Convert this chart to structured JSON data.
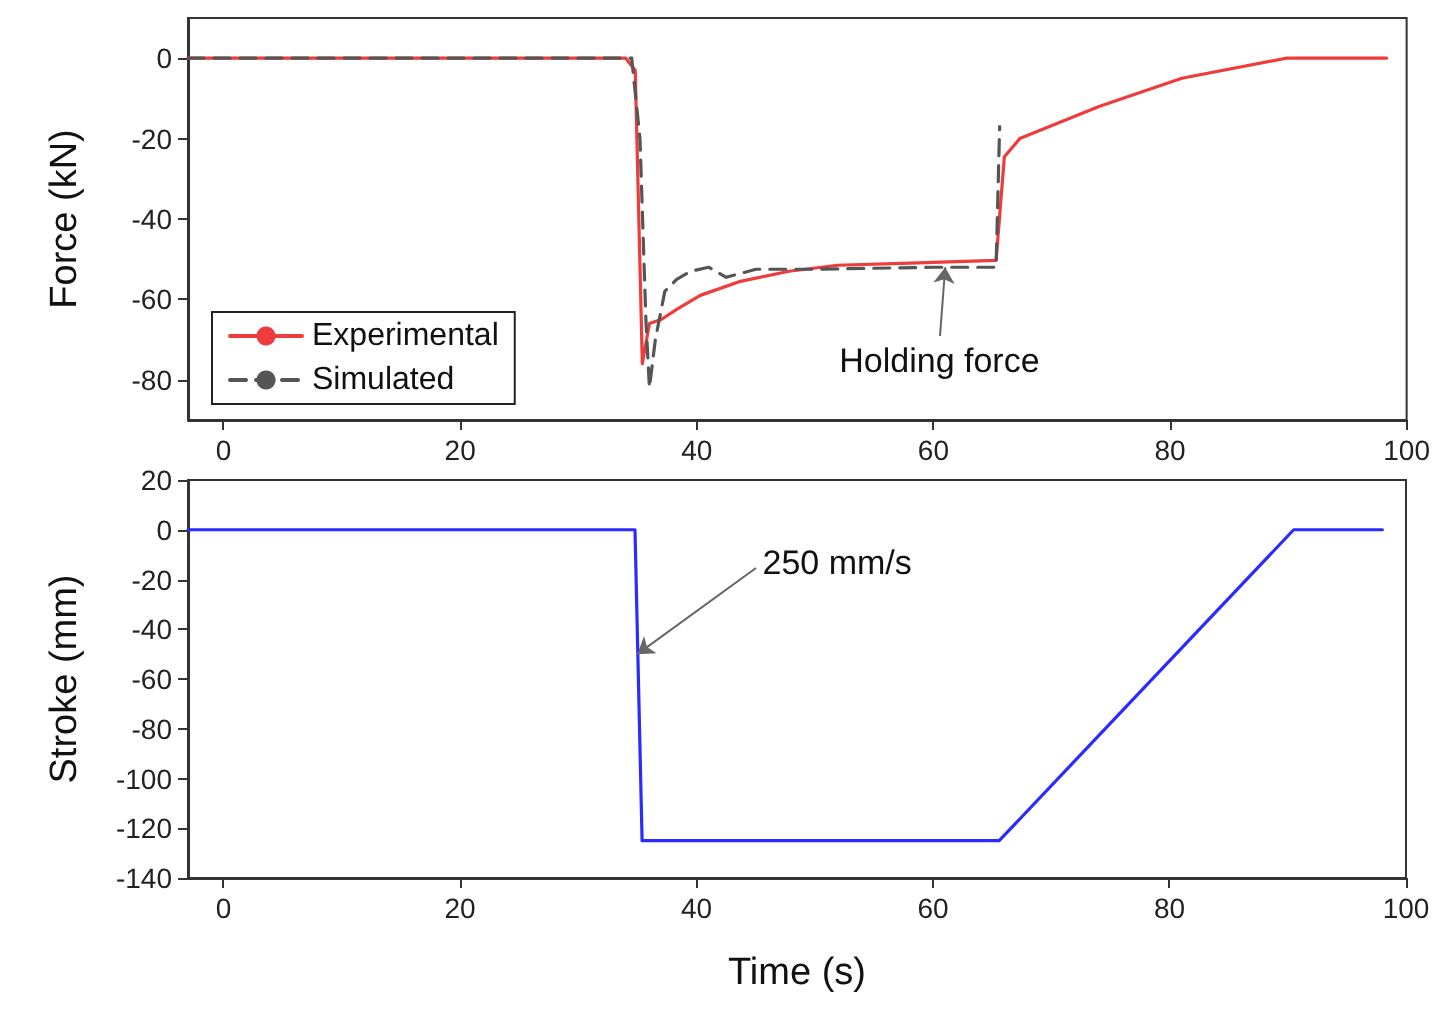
{
  "chart_data": [
    {
      "type": "line",
      "ylabel": "Force (kN)",
      "xlim": [
        -3,
        100
      ],
      "xticks": [
        0,
        20,
        40,
        60,
        80,
        100
      ],
      "ylim": [
        -90,
        10
      ],
      "yticks": [
        -80,
        -60,
        -40,
        -20,
        0
      ],
      "grid": false,
      "legend": "bottom left",
      "marker": "none",
      "annotations": [
        {
          "text": "Holding force",
          "x": 61,
          "y": -52
        }
      ],
      "series": [
        {
          "name": "Experimental",
          "color": "#ee3b3b",
          "line_style": "solid",
          "x": [
            -3,
            34,
            34.8,
            35.4,
            36,
            37,
            38.3,
            40.3,
            43.7,
            47.8,
            51.9,
            58,
            65.3,
            66,
            67.3,
            74,
            81,
            89.8,
            98.3
          ],
          "values": [
            0,
            0,
            -3,
            -76,
            -66,
            -65,
            -62.5,
            -59,
            -55.5,
            -53,
            -51.5,
            -51,
            -50.3,
            -24.5,
            -20,
            -12,
            -5,
            0,
            0
          ]
        },
        {
          "name": "Simulated",
          "color": "#555555",
          "line_style": "dashed",
          "x": [
            -3,
            34.5,
            35.2,
            35.7,
            36,
            36.5,
            37.3,
            38.3,
            39.5,
            41,
            42.5,
            45,
            50,
            60,
            65.3,
            65.6
          ],
          "values": [
            0,
            0,
            -20,
            -65,
            -82,
            -70,
            -58,
            -55,
            -53,
            -52,
            -54.5,
            -52.5,
            -52.5,
            -52,
            -52,
            -17
          ]
        }
      ]
    },
    {
      "type": "line",
      "xlabel": "Time (s)",
      "ylabel": "Stroke (mm)",
      "xlim": [
        -3,
        100
      ],
      "xticks": [
        0,
        20,
        40,
        60,
        80,
        100
      ],
      "ylim": [
        -140,
        20
      ],
      "yticks": [
        -140,
        -120,
        -100,
        -80,
        -60,
        -40,
        -20,
        0,
        20
      ],
      "grid": false,
      "marker": "none",
      "annotations": [
        {
          "text": "250 mm/s",
          "x": 35,
          "y": -50
        }
      ],
      "series": [
        {
          "color": "#2b2bff",
          "line_style": "solid",
          "x": [
            -3,
            34.8,
            35.4,
            65.6,
            90.5,
            98
          ],
          "values": [
            0,
            0,
            -125,
            -125,
            0,
            0
          ]
        }
      ]
    }
  ]
}
